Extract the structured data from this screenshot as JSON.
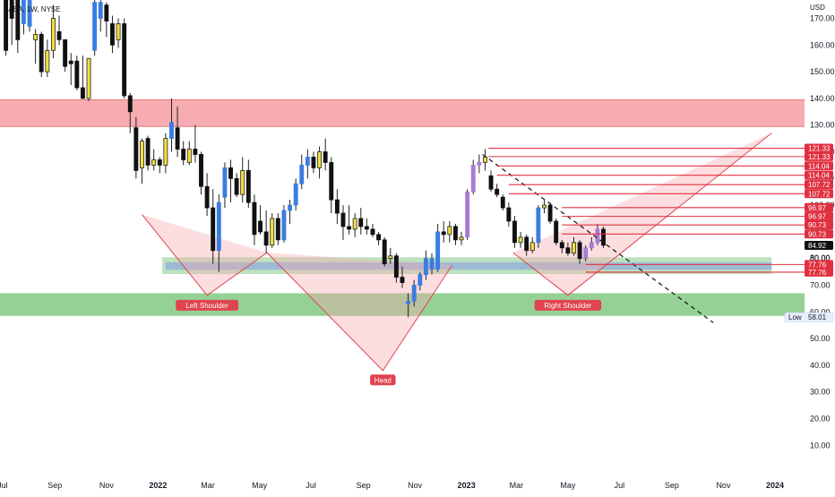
{
  "header": {
    "ticker_label": "BABA, 1W, NYSE",
    "currency": "USD"
  },
  "chart_data": {
    "type": "candlestick",
    "y_axis_ticks": [
      10,
      20,
      30,
      40,
      50,
      60,
      70,
      80,
      90,
      100,
      110,
      120,
      130,
      140,
      150,
      160,
      170
    ],
    "ylim": [
      5,
      175
    ],
    "x_axis_ticks": [
      {
        "label": "Jul",
        "date": "2021-07-01",
        "bold": false
      },
      {
        "label": "Sep",
        "date": "2021-09-01",
        "bold": false
      },
      {
        "label": "Nov",
        "date": "2021-11-01",
        "bold": false
      },
      {
        "label": "2022",
        "date": "2022-01-01",
        "bold": true
      },
      {
        "label": "Mar",
        "date": "2022-03-01",
        "bold": false
      },
      {
        "label": "May",
        "date": "2022-05-01",
        "bold": false
      },
      {
        "label": "Jul",
        "date": "2022-07-01",
        "bold": false
      },
      {
        "label": "Sep",
        "date": "2022-09-01",
        "bold": false
      },
      {
        "label": "Nov",
        "date": "2022-11-01",
        "bold": false
      },
      {
        "label": "2023",
        "date": "2023-01-01",
        "bold": true
      },
      {
        "label": "Mar",
        "date": "2023-03-01",
        "bold": false
      },
      {
        "label": "May",
        "date": "2023-05-01",
        "bold": false
      },
      {
        "label": "Jul",
        "date": "2023-07-01",
        "bold": false
      },
      {
        "label": "Sep",
        "date": "2023-09-01",
        "bold": false
      },
      {
        "label": "Nov",
        "date": "2023-11-01",
        "bold": false
      },
      {
        "label": "2024",
        "date": "2024-01-01",
        "bold": true
      }
    ],
    "x_range": [
      "2021-06-28",
      "2024-02-05"
    ],
    "price_tags": [
      {
        "label": "121.33",
        "value": 121.33,
        "style": "line"
      },
      {
        "label": "121.33",
        "value": 118.2,
        "style": "line"
      },
      {
        "label": "114.04",
        "value": 114.7,
        "style": "line"
      },
      {
        "label": "114.04",
        "value": 111.2,
        "style": "line"
      },
      {
        "label": "107.72",
        "value": 107.7,
        "style": "line"
      },
      {
        "label": "107.72",
        "value": 104.3,
        "style": "line"
      },
      {
        "label": "96.97",
        "value": 99.1,
        "style": "line"
      },
      {
        "label": "96.97",
        "value": 95.8,
        "style": "line"
      },
      {
        "label": "90.73",
        "value": 92.6,
        "style": "line"
      },
      {
        "label": "90.73",
        "value": 89.2,
        "style": "line"
      },
      {
        "label": "84.92",
        "value": 84.92,
        "style": "current"
      },
      {
        "label": "80.00",
        "value": 80.3,
        "style": "plain"
      },
      {
        "label": "77.76",
        "value": 77.76,
        "style": "line"
      },
      {
        "label": "77.76",
        "value": 74.9,
        "style": "line"
      }
    ],
    "low_label": {
      "text": "Low",
      "value_text": "58.01",
      "value": 58.01
    },
    "zones": [
      {
        "color": "#f7a8ad",
        "y_top": 139.5,
        "y_bottom": 129.5,
        "x_start": "2021-06-28",
        "x_end": "2024-02-05"
      },
      {
        "color": "#8fcf8f",
        "y_top": 67.0,
        "y_bottom": 58.5,
        "x_start": "2021-06-28",
        "x_end": "2024-02-05"
      },
      {
        "color": "#a8d8a8",
        "y_top": 80.5,
        "y_bottom": 74.2,
        "x_start": "2022-01-06",
        "x_end": "2023-12-28"
      },
      {
        "color": "#8faedc",
        "y_top": 78.6,
        "y_bottom": 75.8,
        "x_start": "2022-01-10",
        "x_end": "2023-12-28"
      }
    ],
    "annotations": [
      {
        "text": "Left Shoulder",
        "date": "2022-02-28",
        "value": 62.5
      },
      {
        "text": "Head",
        "date": "2022-09-24",
        "value": 34.5
      },
      {
        "text": "Right Shoulder",
        "date": "2023-05-01",
        "value": 62.5
      }
    ],
    "pattern": {
      "left_shoulder": [
        [
          "2021-12-13",
          96.5
        ],
        [
          "2022-02-28",
          66.2
        ],
        [
          "2022-05-10",
          82.2
        ]
      ],
      "head": [
        [
          "2022-05-10",
          82.2
        ],
        [
          "2022-09-24",
          38.0
        ],
        [
          "2022-12-15",
          77.5
        ]
      ],
      "right_shoulder": [
        [
          "2023-02-25",
          82.2
        ],
        [
          "2023-05-01",
          66.2
        ],
        [
          "2023-12-28",
          127.0
        ]
      ]
    },
    "trendline": [
      [
        "2023-01-20",
        119.0
      ],
      [
        "2023-10-20",
        56.0
      ]
    ],
    "candles": [
      {
        "date": "2021-07-05",
        "o": 210,
        "h": 215,
        "l": 156,
        "c": 158
      },
      {
        "date": "2021-07-12",
        "o": 200,
        "h": 204,
        "l": 160,
        "c": 170
      },
      {
        "date": "2021-07-19",
        "o": 200,
        "h": 210,
        "l": 157,
        "c": 162
      },
      {
        "date": "2021-07-26",
        "o": 168,
        "h": 190,
        "l": 164,
        "c": 185
      },
      {
        "date": "2021-08-02",
        "o": 190,
        "h": 194,
        "l": 165,
        "c": 167
      },
      {
        "date": "2021-08-09",
        "o": 162,
        "h": 166,
        "l": 153,
        "c": 164
      },
      {
        "date": "2021-08-16",
        "o": 164,
        "h": 165,
        "l": 148,
        "c": 150
      },
      {
        "date": "2021-08-23",
        "o": 150,
        "h": 162,
        "l": 148,
        "c": 158
      },
      {
        "date": "2021-08-30",
        "o": 158,
        "h": 175,
        "l": 155,
        "c": 170
      },
      {
        "date": "2021-09-06",
        "o": 165,
        "h": 171,
        "l": 160,
        "c": 162
      },
      {
        "date": "2021-09-13",
        "o": 162,
        "h": 162,
        "l": 150,
        "c": 152
      },
      {
        "date": "2021-09-20",
        "o": 154,
        "h": 157,
        "l": 145,
        "c": 153
      },
      {
        "date": "2021-09-27",
        "o": 154,
        "h": 156,
        "l": 143,
        "c": 144
      },
      {
        "date": "2021-10-04",
        "o": 144,
        "h": 156,
        "l": 140,
        "c": 140
      },
      {
        "date": "2021-10-11",
        "o": 140,
        "h": 155,
        "l": 139,
        "c": 155
      },
      {
        "date": "2021-10-18",
        "o": 158,
        "h": 179,
        "l": 156,
        "c": 176
      },
      {
        "date": "2021-10-25",
        "o": 176,
        "h": 181,
        "l": 165,
        "c": 170
      },
      {
        "date": "2021-11-01",
        "o": 175,
        "h": 176,
        "l": 163,
        "c": 169
      },
      {
        "date": "2021-11-08",
        "o": 168,
        "h": 171,
        "l": 157,
        "c": 160
      },
      {
        "date": "2021-11-15",
        "o": 162,
        "h": 170,
        "l": 159,
        "c": 168
      },
      {
        "date": "2021-11-22",
        "o": 168,
        "h": 170,
        "l": 140,
        "c": 141
      },
      {
        "date": "2021-11-29",
        "o": 141,
        "h": 142,
        "l": 127,
        "c": 135
      },
      {
        "date": "2021-12-06",
        "o": 129,
        "h": 133,
        "l": 110,
        "c": 113
      },
      {
        "date": "2021-12-13",
        "o": 114,
        "h": 125,
        "l": 108,
        "c": 124
      },
      {
        "date": "2021-12-20",
        "o": 125,
        "h": 126,
        "l": 113,
        "c": 115
      },
      {
        "date": "2021-12-27",
        "o": 115,
        "h": 121,
        "l": 113,
        "c": 117
      },
      {
        "date": "2022-01-03",
        "o": 117,
        "h": 118,
        "l": 112,
        "c": 115
      },
      {
        "date": "2022-01-10",
        "o": 115,
        "h": 127,
        "l": 112,
        "c": 125
      },
      {
        "date": "2022-01-17",
        "o": 125,
        "h": 140,
        "l": 120,
        "c": 131
      },
      {
        "date": "2022-01-24",
        "o": 129,
        "h": 137,
        "l": 118,
        "c": 121
      },
      {
        "date": "2022-01-31",
        "o": 121,
        "h": 124,
        "l": 115,
        "c": 117
      },
      {
        "date": "2022-02-07",
        "o": 116,
        "h": 124,
        "l": 115,
        "c": 121
      },
      {
        "date": "2022-02-14",
        "o": 121,
        "h": 130,
        "l": 116,
        "c": 119
      },
      {
        "date": "2022-02-21",
        "o": 119,
        "h": 120,
        "l": 104,
        "c": 107
      },
      {
        "date": "2022-02-28",
        "o": 107,
        "h": 112,
        "l": 96,
        "c": 99
      },
      {
        "date": "2022-03-07",
        "o": 99,
        "h": 106,
        "l": 78,
        "c": 83
      },
      {
        "date": "2022-03-14",
        "o": 83,
        "h": 104,
        "l": 75,
        "c": 101
      },
      {
        "date": "2022-03-21",
        "o": 103,
        "h": 116,
        "l": 99,
        "c": 114
      },
      {
        "date": "2022-03-28",
        "o": 114,
        "h": 117,
        "l": 101,
        "c": 110
      },
      {
        "date": "2022-04-04",
        "o": 110,
        "h": 112,
        "l": 103,
        "c": 104
      },
      {
        "date": "2022-04-11",
        "o": 104,
        "h": 118,
        "l": 101,
        "c": 113
      },
      {
        "date": "2022-04-18",
        "o": 113,
        "h": 117,
        "l": 99,
        "c": 101
      },
      {
        "date": "2022-04-25",
        "o": 101,
        "h": 104,
        "l": 85,
        "c": 89
      },
      {
        "date": "2022-05-02",
        "o": 94,
        "h": 100,
        "l": 89,
        "c": 90
      },
      {
        "date": "2022-05-09",
        "o": 90,
        "h": 98,
        "l": 82,
        "c": 85
      },
      {
        "date": "2022-05-16",
        "o": 85,
        "h": 97,
        "l": 84,
        "c": 95
      },
      {
        "date": "2022-05-23",
        "o": 95,
        "h": 97,
        "l": 85,
        "c": 87
      },
      {
        "date": "2022-05-30",
        "o": 87,
        "h": 100,
        "l": 86,
        "c": 98
      },
      {
        "date": "2022-06-06",
        "o": 98,
        "h": 102,
        "l": 93,
        "c": 100
      },
      {
        "date": "2022-06-13",
        "o": 100,
        "h": 110,
        "l": 98,
        "c": 108
      },
      {
        "date": "2022-06-20",
        "o": 108,
        "h": 119,
        "l": 106,
        "c": 115
      },
      {
        "date": "2022-06-27",
        "o": 115,
        "h": 121,
        "l": 110,
        "c": 118
      },
      {
        "date": "2022-07-04",
        "o": 118,
        "h": 120,
        "l": 112,
        "c": 114
      },
      {
        "date": "2022-07-11",
        "o": 114,
        "h": 122,
        "l": 110,
        "c": 120
      },
      {
        "date": "2022-07-18",
        "o": 120,
        "h": 125,
        "l": 113,
        "c": 116
      },
      {
        "date": "2022-07-25",
        "o": 116,
        "h": 118,
        "l": 97,
        "c": 102
      },
      {
        "date": "2022-08-01",
        "o": 102,
        "h": 106,
        "l": 93,
        "c": 97
      },
      {
        "date": "2022-08-08",
        "o": 97,
        "h": 100,
        "l": 87,
        "c": 92
      },
      {
        "date": "2022-08-15",
        "o": 92,
        "h": 100,
        "l": 89,
        "c": 91
      },
      {
        "date": "2022-08-22",
        "o": 91,
        "h": 97,
        "l": 88,
        "c": 95
      },
      {
        "date": "2022-08-29",
        "o": 95,
        "h": 99,
        "l": 89,
        "c": 92
      },
      {
        "date": "2022-09-05",
        "o": 92,
        "h": 95,
        "l": 89,
        "c": 91
      },
      {
        "date": "2022-09-12",
        "o": 91,
        "h": 93,
        "l": 88,
        "c": 89
      },
      {
        "date": "2022-09-19",
        "o": 89,
        "h": 90,
        "l": 85,
        "c": 87
      },
      {
        "date": "2022-09-26",
        "o": 87,
        "h": 88,
        "l": 77,
        "c": 78
      },
      {
        "date": "2022-10-03",
        "o": 80,
        "h": 84,
        "l": 78,
        "c": 81
      },
      {
        "date": "2022-10-10",
        "o": 81,
        "h": 82,
        "l": 71,
        "c": 73
      },
      {
        "date": "2022-10-17",
        "o": 73,
        "h": 77,
        "l": 69,
        "c": 71
      },
      {
        "date": "2022-10-24",
        "o": 63,
        "h": 67,
        "l": 58,
        "c": 64
      },
      {
        "date": "2022-10-31",
        "o": 64,
        "h": 72,
        "l": 62,
        "c": 70
      },
      {
        "date": "2022-11-07",
        "o": 70,
        "h": 75,
        "l": 68,
        "c": 74
      },
      {
        "date": "2022-11-14",
        "o": 74,
        "h": 83,
        "l": 72,
        "c": 80
      },
      {
        "date": "2022-11-21",
        "o": 80,
        "h": 82,
        "l": 74,
        "c": 76
      },
      {
        "date": "2022-11-28",
        "o": 76,
        "h": 93,
        "l": 75,
        "c": 90
      },
      {
        "date": "2022-12-05",
        "o": 90,
        "h": 94,
        "l": 86,
        "c": 89
      },
      {
        "date": "2022-12-12",
        "o": 89,
        "h": 94,
        "l": 86,
        "c": 92
      },
      {
        "date": "2022-12-19",
        "o": 92,
        "h": 93,
        "l": 85,
        "c": 87
      },
      {
        "date": "2022-12-26",
        "o": 87,
        "h": 90,
        "l": 85,
        "c": 88
      },
      {
        "date": "2023-01-02",
        "o": 88,
        "h": 106,
        "l": 87,
        "c": 105
      },
      {
        "date": "2023-01-09",
        "o": 105,
        "h": 117,
        "l": 104,
        "c": 115
      },
      {
        "date": "2023-01-16",
        "o": 115,
        "h": 119,
        "l": 112,
        "c": 116
      },
      {
        "date": "2023-01-23",
        "o": 116,
        "h": 121,
        "l": 113,
        "c": 118
      },
      {
        "date": "2023-01-30",
        "o": 111,
        "h": 113,
        "l": 105,
        "c": 106
      },
      {
        "date": "2023-02-06",
        "o": 106,
        "h": 108,
        "l": 103,
        "c": 104
      },
      {
        "date": "2023-02-13",
        "o": 103,
        "h": 104,
        "l": 98,
        "c": 99
      },
      {
        "date": "2023-02-20",
        "o": 99,
        "h": 101,
        "l": 92,
        "c": 94
      },
      {
        "date": "2023-02-27",
        "o": 94,
        "h": 96,
        "l": 84,
        "c": 86
      },
      {
        "date": "2023-03-06",
        "o": 86,
        "h": 90,
        "l": 84,
        "c": 88
      },
      {
        "date": "2023-03-13",
        "o": 88,
        "h": 89,
        "l": 81,
        "c": 83
      },
      {
        "date": "2023-03-20",
        "o": 83,
        "h": 88,
        "l": 82,
        "c": 86
      },
      {
        "date": "2023-03-27",
        "o": 86,
        "h": 100,
        "l": 84,
        "c": 99
      },
      {
        "date": "2023-04-03",
        "o": 99,
        "h": 102,
        "l": 97,
        "c": 100
      },
      {
        "date": "2023-04-10",
        "o": 100,
        "h": 101,
        "l": 93,
        "c": 94
      },
      {
        "date": "2023-04-17",
        "o": 94,
        "h": 95,
        "l": 85,
        "c": 86
      },
      {
        "date": "2023-04-24",
        "o": 86,
        "h": 87,
        "l": 82,
        "c": 84
      },
      {
        "date": "2023-05-01",
        "o": 84,
        "h": 86,
        "l": 81,
        "c": 82
      },
      {
        "date": "2023-05-08",
        "o": 82,
        "h": 88,
        "l": 81,
        "c": 86
      },
      {
        "date": "2023-05-15",
        "o": 86,
        "h": 87,
        "l": 78,
        "c": 80
      },
      {
        "date": "2023-05-22",
        "o": 80,
        "h": 85,
        "l": 79,
        "c": 84
      },
      {
        "date": "2023-05-29",
        "o": 84,
        "h": 88,
        "l": 83,
        "c": 86
      },
      {
        "date": "2023-06-05",
        "o": 86,
        "h": 93,
        "l": 85,
        "c": 91
      },
      {
        "date": "2023-06-12",
        "o": 91,
        "h": 92,
        "l": 84,
        "c": 85
      }
    ]
  }
}
